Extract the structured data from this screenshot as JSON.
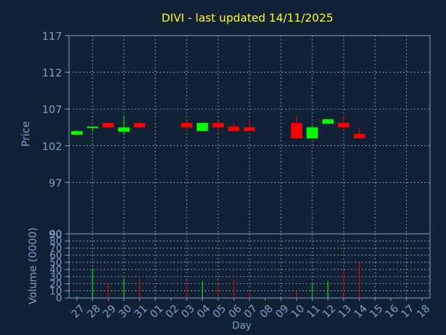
{
  "chart_data": [
    {
      "type": "candlestick",
      "title": "DIVI - last updated 14/11/2025",
      "ylabel": "Price",
      "ylim": [
        90,
        117
      ],
      "yticks": [
        117,
        112,
        107,
        102,
        97,
        90
      ],
      "x": [
        "27",
        "28",
        "29",
        "30",
        "31",
        "01",
        "02",
        "03",
        "04",
        "05",
        "06",
        "07",
        "08",
        "09",
        "10",
        "11",
        "12",
        "13",
        "14",
        "15",
        "16",
        "17",
        "18"
      ],
      "candles": [
        {
          "day": "27",
          "open": 103.5,
          "high": 104.1,
          "low": 103.4,
          "close": 104.0
        },
        {
          "day": "28",
          "open": 104.4,
          "high": 104.6,
          "low": 104.0,
          "close": 104.6
        },
        {
          "day": "29",
          "open": 105.1,
          "high": 105.1,
          "low": 104.4,
          "close": 104.5
        },
        {
          "day": "30",
          "open": 103.9,
          "high": 106.1,
          "low": 103.5,
          "close": 104.5
        },
        {
          "day": "31",
          "open": 105.1,
          "high": 105.3,
          "low": 104.4,
          "close": 104.5
        },
        {
          "day": "03",
          "open": 105.1,
          "high": 105.5,
          "low": 104.0,
          "close": 104.5
        },
        {
          "day": "04",
          "open": 104.0,
          "high": 105.1,
          "low": 104.0,
          "close": 105.1
        },
        {
          "day": "05",
          "open": 105.1,
          "high": 105.5,
          "low": 103.7,
          "close": 104.5
        },
        {
          "day": "06",
          "open": 104.6,
          "high": 105.2,
          "low": 104.0,
          "close": 104.0
        },
        {
          "day": "07",
          "open": 104.5,
          "high": 105.6,
          "low": 104.0,
          "close": 104.0
        },
        {
          "day": "10",
          "open": 105.1,
          "high": 106.0,
          "low": 103.0,
          "close": 103.0
        },
        {
          "day": "11",
          "open": 103.0,
          "high": 104.8,
          "low": 103.0,
          "close": 104.5
        },
        {
          "day": "12",
          "open": 105.0,
          "high": 105.6,
          "low": 105.0,
          "close": 105.6
        },
        {
          "day": "13",
          "open": 105.1,
          "high": 106.1,
          "low": 104.0,
          "close": 104.5
        },
        {
          "day": "14",
          "open": 103.6,
          "high": 104.4,
          "low": 103.0,
          "close": 103.0
        }
      ]
    },
    {
      "type": "bar",
      "ylabel": "Volume (0000)",
      "xlabel": "Day",
      "ylim": [
        0,
        90
      ],
      "yticks": [
        0,
        10,
        20,
        30,
        40,
        50,
        60,
        70,
        80,
        90
      ],
      "categories": [
        "27",
        "28",
        "29",
        "30",
        "31",
        "03",
        "04",
        "05",
        "06",
        "07",
        "10",
        "11",
        "12",
        "13",
        "14"
      ],
      "values": [
        3,
        40,
        20,
        28,
        27,
        20,
        24,
        21,
        26,
        9,
        9,
        21,
        24,
        38,
        50
      ],
      "directions": [
        "up",
        "up",
        "down",
        "up",
        "down",
        "down",
        "up",
        "down",
        "down",
        "down",
        "down",
        "up",
        "up",
        "down",
        "down"
      ]
    }
  ],
  "colors": {
    "background": "#112236",
    "up": "#00ff00",
    "down": "#ff0000",
    "title": "#ffff00",
    "text": "#7f9fc4",
    "grid": "#c8c8c8",
    "axis": "#8aa0c0"
  }
}
